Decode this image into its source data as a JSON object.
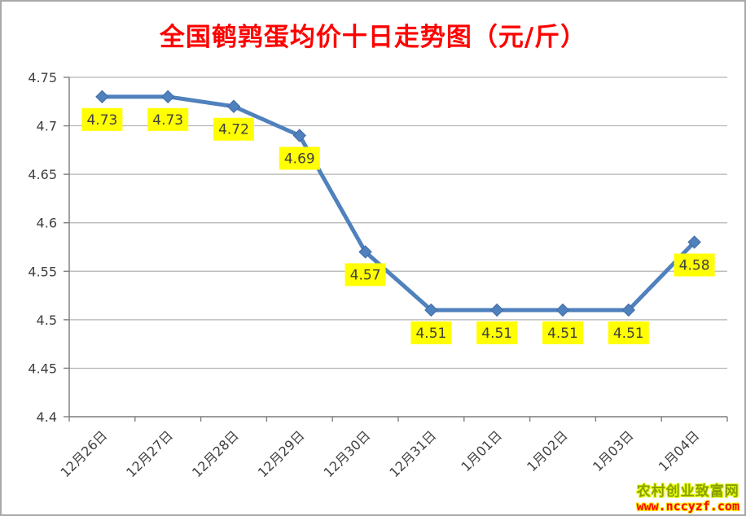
{
  "chart": {
    "title": "全国鹌鹑蛋均价十日走势图（元/斤）"
  },
  "chart_data": {
    "type": "line",
    "title": "全国鹌鹑蛋均价十日走势图（元/斤）",
    "categories": [
      "12月26日",
      "12月27日",
      "12月28日",
      "12月29日",
      "12月30日",
      "12月31日",
      "1月01日",
      "1月02日",
      "1月03日",
      "1月04日"
    ],
    "values": [
      4.73,
      4.73,
      4.72,
      4.69,
      4.57,
      4.51,
      4.51,
      4.51,
      4.51,
      4.58
    ],
    "point_labels": [
      "4.73",
      "4.73",
      "4.72",
      "4.69",
      "4.57",
      "4.51",
      "4.51",
      "4.51",
      "4.51",
      "4.58"
    ],
    "xlabel": "",
    "ylabel": "",
    "ylim": [
      4.4,
      4.75
    ],
    "ytick_step": 0.05,
    "yticks": [
      {
        "value": 4.4,
        "label": "4.4"
      },
      {
        "value": 4.45,
        "label": "4.45"
      },
      {
        "value": 4.5,
        "label": "4.5"
      },
      {
        "value": 4.55,
        "label": "4.55"
      },
      {
        "value": 4.6,
        "label": "4.6"
      },
      {
        "value": 4.65,
        "label": "4.65"
      },
      {
        "value": 4.7,
        "label": "4.7"
      },
      {
        "value": 4.75,
        "label": "4.75"
      }
    ],
    "grid": true,
    "legend": "none",
    "marker": "diamond",
    "data_labels_visible": true
  },
  "colors": {
    "title": "#ff0000",
    "line": "#4f81bd",
    "marker_fill": "#4f81bd",
    "marker_stroke": "#3d6aa3",
    "label_bg": "#ffff00",
    "label_text": "#404040",
    "axis_text": "#404040",
    "gridline": "#b3b3b3",
    "axis_line": "#808080"
  },
  "watermark": {
    "site_name": "农村创业致富网",
    "site_url": "www.nccyzf.com"
  }
}
